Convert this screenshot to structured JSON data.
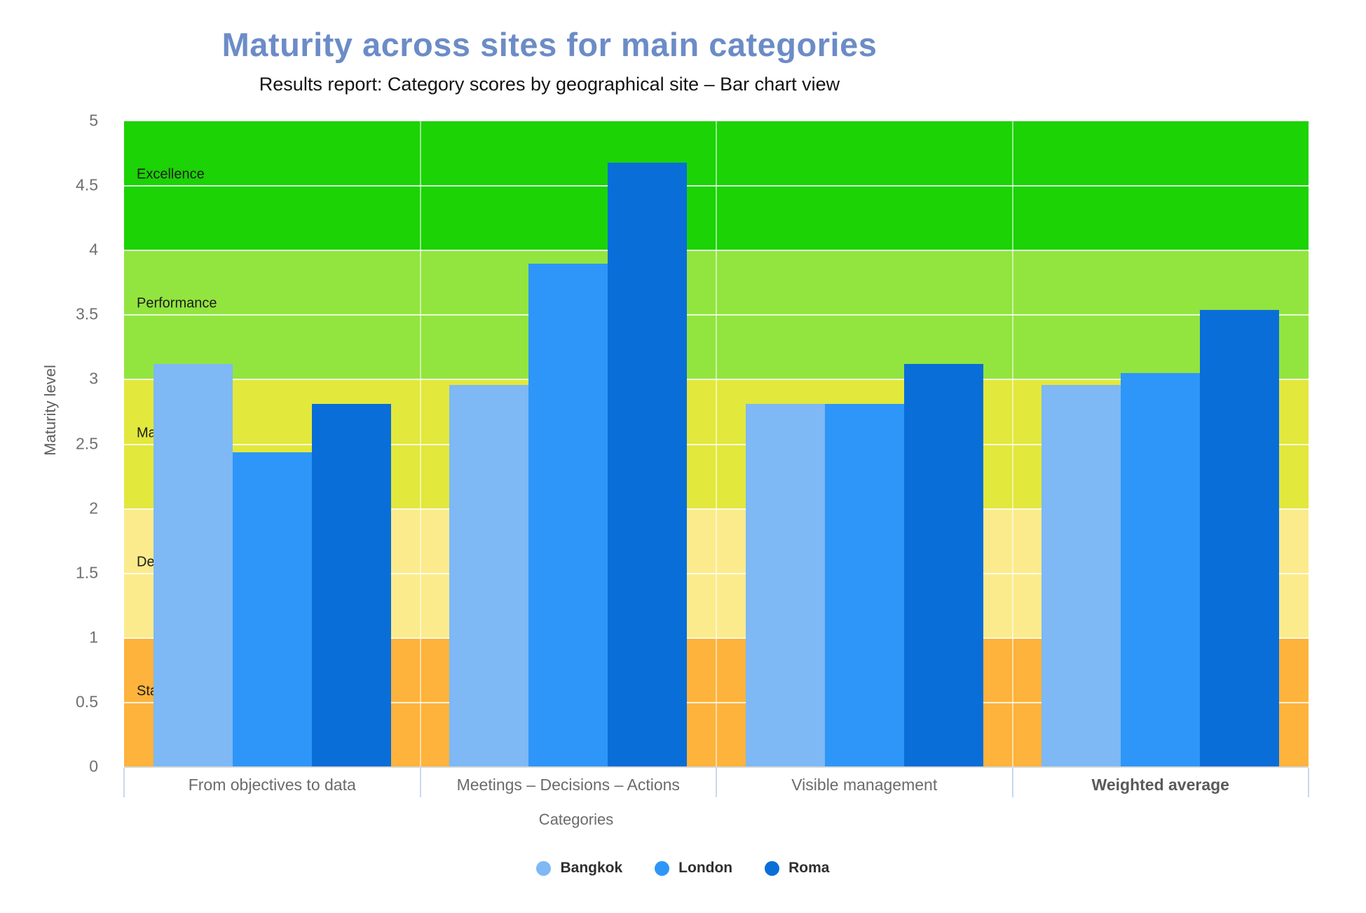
{
  "chart_data": {
    "type": "bar",
    "title": "Maturity across sites for main categories",
    "subtitle": "Results report: Category scores by geographical site – Bar chart view",
    "title_color": "#6C8CC7",
    "categories": [
      "From objectives to data",
      "Meetings – Decisions – Actions",
      "Visible management",
      "Weighted average"
    ],
    "bold_categories": [
      "Weighted average"
    ],
    "series": [
      {
        "name": "Bangkok",
        "color": "#7EB8F5",
        "values": [
          3.12,
          2.96,
          2.81,
          2.96
        ]
      },
      {
        "name": "London",
        "color": "#2E96F8",
        "values": [
          2.44,
          3.9,
          2.81,
          3.05
        ]
      },
      {
        "name": "Roma",
        "color": "#0A6ED8",
        "values": [
          2.81,
          4.68,
          3.12,
          3.54
        ]
      }
    ],
    "xlabel": "Categories",
    "ylabel": "Maturity level",
    "ylim": [
      0,
      5
    ],
    "ytick_step": 0.5,
    "grid": true,
    "legend_position": "bottom",
    "bands": [
      {
        "from": 0,
        "to": 1,
        "color": "#FDB33C",
        "label": "Sta"
      },
      {
        "from": 1,
        "to": 2,
        "color": "#FBEB8C",
        "label": "De"
      },
      {
        "from": 2,
        "to": 3,
        "color": "#E2E83C",
        "label": "Ma"
      },
      {
        "from": 3,
        "to": 4,
        "color": "#92E53F",
        "label": "Performance"
      },
      {
        "from": 4,
        "to": 5,
        "color": "#1BD305",
        "label": "Excellence"
      }
    ]
  }
}
